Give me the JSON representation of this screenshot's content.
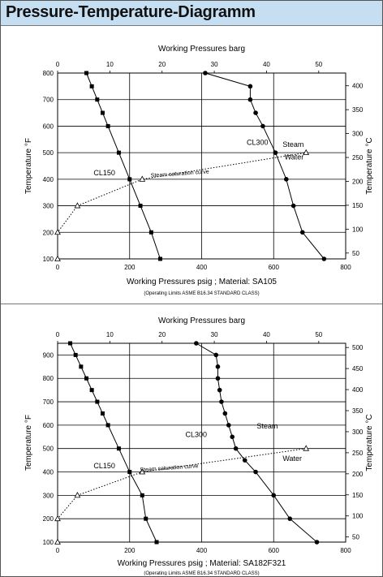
{
  "page": {
    "title": "Pressure-Temperature-Diagramm"
  },
  "chart_data": [
    {
      "type": "line",
      "title": "Working Pressures barg",
      "xlabel": "Working Pressures psig ; Material: SA105",
      "subtitle": "(Operating Limits ASME B16.34 STANDARD CLASS)",
      "ylabel": "Temperature °F",
      "ylabel2": "Temperature °C",
      "xlim": [
        0,
        800
      ],
      "ylim": [
        100,
        800
      ],
      "x_ticks": [
        0,
        200,
        400,
        600,
        800
      ],
      "y_ticks": [
        100,
        200,
        300,
        400,
        500,
        600,
        700,
        800
      ],
      "x2_ticks": [
        0,
        10,
        20,
        30,
        40,
        50
      ],
      "y2_ticks": [
        50,
        100,
        150,
        200,
        250,
        300,
        350,
        400
      ],
      "grid": true,
      "series": [
        {
          "name": "CL150",
          "marker": "square",
          "points": [
            [
              285,
              100
            ],
            [
              260,
              200
            ],
            [
              230,
              300
            ],
            [
              200,
              400
            ],
            [
              170,
              500
            ],
            [
              140,
              600
            ],
            [
              125,
              650
            ],
            [
              110,
              700
            ],
            [
              95,
              750
            ],
            [
              80,
              800
            ]
          ]
        },
        {
          "name": "CL300",
          "marker": "circle",
          "points": [
            [
              740,
              100
            ],
            [
              680,
              200
            ],
            [
              655,
              300
            ],
            [
              635,
              400
            ],
            [
              605,
              500
            ],
            [
              570,
              600
            ],
            [
              550,
              650
            ],
            [
              535,
              700
            ],
            [
              535,
              750
            ],
            [
              410,
              800
            ]
          ]
        },
        {
          "name": "Steam saturation curve",
          "marker": "triangle",
          "dashed": true,
          "points": [
            [
              0,
              100
            ],
            [
              0,
              200
            ],
            [
              55,
              300
            ],
            [
              235,
              400
            ],
            [
              690,
              500
            ]
          ]
        }
      ],
      "annotations": [
        "CL150",
        "CL300",
        "Steam",
        "Water",
        "Steam saturation curve"
      ]
    },
    {
      "type": "line",
      "title": "Working Pressures barg",
      "xlabel": "Working Pressures psig ; Material: SA182F321",
      "subtitle": "(Operating Limits ASME B16.34 STANDARD CLASS)",
      "ylabel": "Temperature °F",
      "ylabel2": "Temperature °C",
      "xlim": [
        0,
        800
      ],
      "ylim": [
        100,
        950
      ],
      "x_ticks": [
        0,
        200,
        400,
        600,
        800
      ],
      "y_ticks": [
        100,
        200,
        300,
        400,
        500,
        600,
        700,
        800,
        900
      ],
      "x2_ticks": [
        0,
        10,
        20,
        30,
        40,
        50
      ],
      "y2_ticks": [
        50,
        100,
        150,
        200,
        250,
        300,
        350,
        400,
        450,
        500
      ],
      "grid": true,
      "series": [
        {
          "name": "CL150",
          "marker": "square",
          "points": [
            [
              275,
              100
            ],
            [
              245,
              200
            ],
            [
              235,
              300
            ],
            [
              200,
              400
            ],
            [
              170,
              500
            ],
            [
              140,
              600
            ],
            [
              125,
              650
            ],
            [
              110,
              700
            ],
            [
              95,
              750
            ],
            [
              80,
              800
            ],
            [
              65,
              850
            ],
            [
              50,
              900
            ],
            [
              35,
              950
            ]
          ]
        },
        {
          "name": "CL300",
          "marker": "circle",
          "points": [
            [
              720,
              100
            ],
            [
              645,
              200
            ],
            [
              600,
              300
            ],
            [
              550,
              400
            ],
            [
              520,
              450
            ],
            [
              495,
              500
            ],
            [
              485,
              550
            ],
            [
              475,
              600
            ],
            [
              465,
              650
            ],
            [
              455,
              700
            ],
            [
              450,
              750
            ],
            [
              445,
              800
            ],
            [
              445,
              850
            ],
            [
              440,
              900
            ],
            [
              385,
              950
            ]
          ]
        },
        {
          "name": "Steam saturation curve",
          "marker": "triangle",
          "dashed": true,
          "points": [
            [
              0,
              100
            ],
            [
              0,
              200
            ],
            [
              55,
              300
            ],
            [
              235,
              400
            ],
            [
              690,
              500
            ]
          ]
        }
      ],
      "annotations": [
        "CL150",
        "CL300",
        "Steam",
        "Water",
        "Steam saturation curve"
      ]
    }
  ]
}
